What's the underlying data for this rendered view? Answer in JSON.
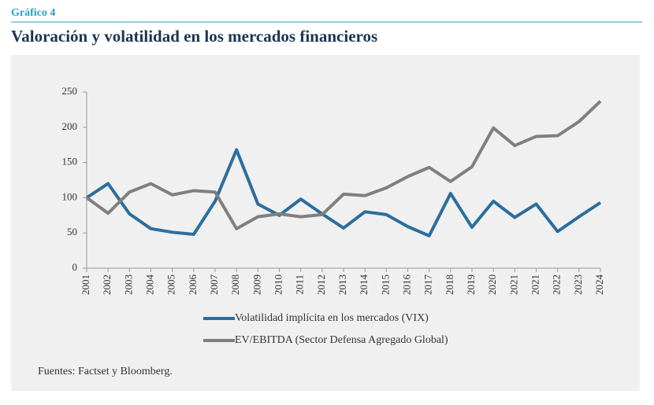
{
  "header": {
    "label": "Gráfico 4",
    "title": "Valoración y volatilidad en los mercados financieros"
  },
  "chart_data": {
    "type": "line",
    "categories": [
      "2001",
      "2002",
      "2003",
      "2004",
      "2005",
      "2006",
      "2007",
      "2008",
      "2009",
      "2010",
      "2011",
      "2012",
      "2013",
      "2014",
      "2015",
      "2016",
      "2017",
      "2018",
      "2019",
      "2020",
      "2021",
      "2021",
      "2022",
      "2023",
      "2024"
    ],
    "series": [
      {
        "name": "Volatilidad implícita en los mercados (VIX)",
        "color": "#2b6e9c",
        "values": [
          100,
          120,
          77,
          56,
          51,
          48,
          95,
          168,
          91,
          75,
          98,
          77,
          57,
          80,
          76,
          59,
          46,
          106,
          58,
          95,
          72,
          91,
          52,
          73,
          93
        ]
      },
      {
        "name": "EV/EBITDA (Sector Defensa Agregado Global)",
        "color": "#7f7f7f",
        "values": [
          100,
          78,
          108,
          120,
          104,
          110,
          108,
          56,
          73,
          77,
          73,
          76,
          105,
          103,
          114,
          130,
          143,
          123,
          144,
          199,
          174,
          187,
          188,
          208,
          237
        ]
      }
    ],
    "ylim": [
      0,
      250
    ],
    "yticks": [
      0,
      50,
      100,
      150,
      200,
      250
    ],
    "grid": false,
    "source": "Fuentes: Factset y Bloomberg."
  }
}
